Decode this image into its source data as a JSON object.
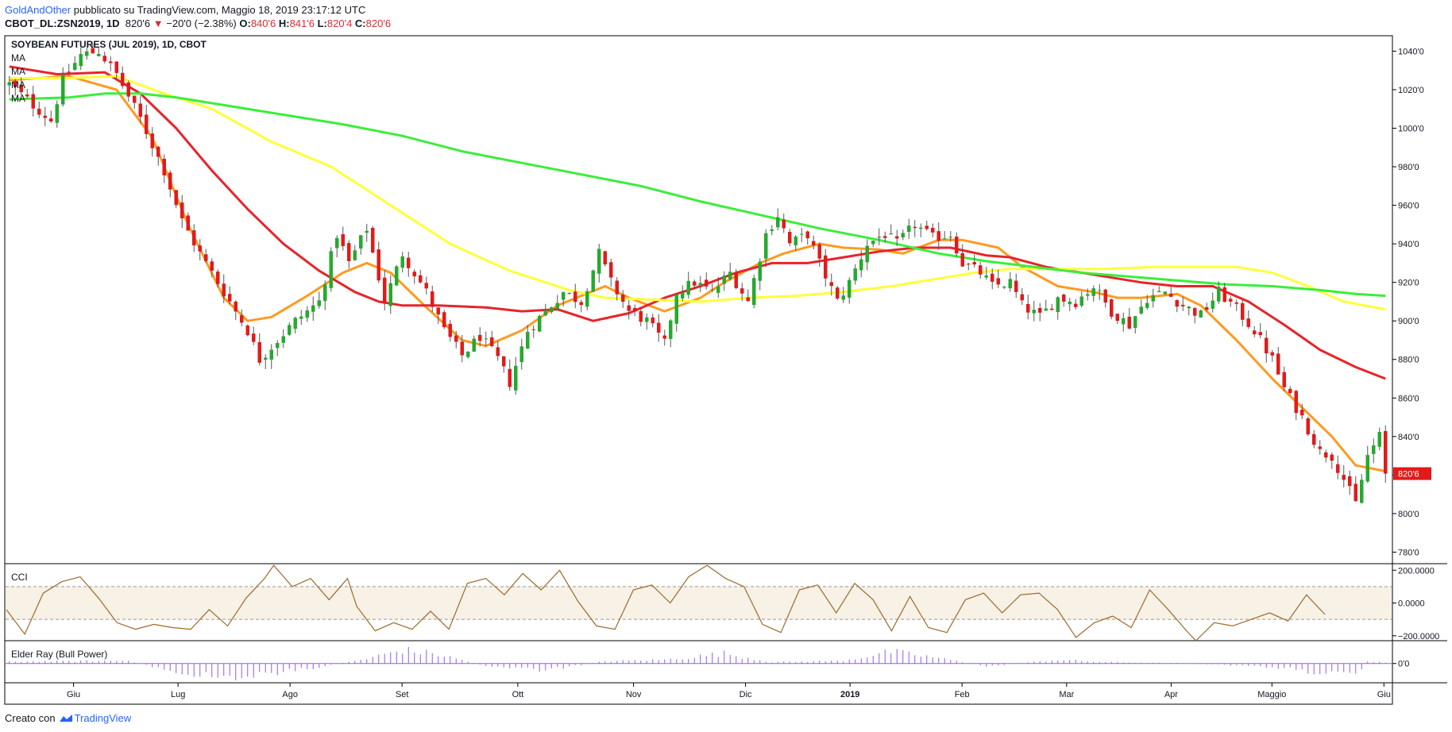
{
  "header": {
    "author": "GoldAndOther",
    "published_text": "pubblicato su TradingView.com, Maggio 18, 2019 23:17:12 UTC",
    "symbol": "CBOT_DL:ZSN2019, 1D",
    "last": "820'6",
    "change": "−20'0 (−2.38%)",
    "o_label": "O:",
    "o_val": "840'6",
    "h_label": "H:",
    "h_val": "841'6",
    "l_label": "L:",
    "l_val": "820'4",
    "c_label": "C:",
    "c_val": "820'6"
  },
  "footer": {
    "created": "Creato con",
    "brand": "TradingView"
  },
  "colors": {
    "up": "#26a92f",
    "down": "#e01b1b",
    "ma1": "#ff9a1f",
    "ma2": "#e8232a",
    "ma3": "#ffff3a",
    "ma4": "#3aee3a",
    "cci": "#9c6b2a",
    "cci_band": "#f7f1e6",
    "elder": "#8c5cf0"
  },
  "chart_data": {
    "type": "candlestick",
    "title": "SOYBEAN FUTURES (JUL 2019), 1D, CBOT",
    "ma_labels": [
      "MA",
      "MA",
      "MA",
      "MA"
    ],
    "x_ticks": [
      "Giu",
      "Lug",
      "Ago",
      "Set",
      "Ott",
      "Nov",
      "Dic",
      "2019",
      "Feb",
      "Mar",
      "Apr",
      "Maggio",
      "Giu"
    ],
    "y_ticks": [
      "1040'0",
      "1020'0",
      "1000'0",
      "980'0",
      "960'0",
      "940'0",
      "920'0",
      "900'0",
      "880'0",
      "860'0",
      "840'0",
      "820'0",
      "800'0",
      "780'0"
    ],
    "y_tick_values": [
      1040,
      1020,
      1000,
      980,
      960,
      940,
      920,
      900,
      880,
      860,
      840,
      820,
      800,
      780
    ],
    "ylim": [
      774,
      1048
    ],
    "last_price_label": "820'6",
    "last_price": 820.75,
    "price_path": [
      [
        0,
        1023
      ],
      [
        4,
        1012
      ],
      [
        7,
        1004
      ],
      [
        9,
        1025
      ],
      [
        12,
        1038
      ],
      [
        15,
        1040
      ],
      [
        18,
        1028
      ],
      [
        22,
        1005
      ],
      [
        26,
        978
      ],
      [
        29,
        952
      ],
      [
        32,
        935
      ],
      [
        36,
        915
      ],
      [
        40,
        895
      ],
      [
        42,
        880
      ],
      [
        45,
        890
      ],
      [
        48,
        900
      ],
      [
        52,
        910
      ],
      [
        55,
        945
      ],
      [
        57,
        930
      ],
      [
        60,
        948
      ],
      [
        63,
        910
      ],
      [
        66,
        935
      ],
      [
        68,
        925
      ],
      [
        70,
        915
      ],
      [
        73,
        895
      ],
      [
        76,
        882
      ],
      [
        79,
        892
      ],
      [
        82,
        880
      ],
      [
        84,
        868
      ],
      [
        87,
        895
      ],
      [
        90,
        905
      ],
      [
        93,
        915
      ],
      [
        96,
        910
      ],
      [
        99,
        935
      ],
      [
        101,
        920
      ],
      [
        104,
        905
      ],
      [
        107,
        900
      ],
      [
        110,
        888
      ],
      [
        112,
        915
      ],
      [
        115,
        920
      ],
      [
        118,
        915
      ],
      [
        121,
        925
      ],
      [
        124,
        910
      ],
      [
        127,
        945
      ],
      [
        129,
        955
      ],
      [
        131,
        940
      ],
      [
        134,
        945
      ],
      [
        136,
        930
      ],
      [
        139,
        910
      ],
      [
        141,
        920
      ],
      [
        144,
        940
      ],
      [
        147,
        945
      ],
      [
        149,
        940
      ],
      [
        152,
        950
      ],
      [
        155,
        943
      ],
      [
        158,
        945
      ],
      [
        160,
        930
      ],
      [
        163,
        925
      ],
      [
        165,
        918
      ],
      [
        168,
        920
      ],
      [
        170,
        908
      ],
      [
        173,
        902
      ],
      [
        176,
        912
      ],
      [
        179,
        910
      ],
      [
        182,
        918
      ],
      [
        185,
        905
      ],
      [
        188,
        898
      ],
      [
        191,
        912
      ],
      [
        194,
        915
      ],
      [
        197,
        908
      ],
      [
        200,
        903
      ],
      [
        203,
        915
      ],
      [
        206,
        906
      ],
      [
        209,
        895
      ],
      [
        212,
        880
      ],
      [
        214,
        865
      ],
      [
        217,
        850
      ],
      [
        220,
        832
      ],
      [
        222,
        830
      ],
      [
        224,
        818
      ],
      [
        226,
        805
      ],
      [
        228,
        830
      ],
      [
        230,
        840
      ],
      [
        231,
        821
      ]
    ],
    "moving_averages": [
      {
        "values": [
          [
            0,
            1025
          ],
          [
            10,
            1027
          ],
          [
            18,
            1020
          ],
          [
            24,
            995
          ],
          [
            30,
            950
          ],
          [
            36,
            912
          ],
          [
            40,
            900
          ],
          [
            44,
            902
          ],
          [
            50,
            913
          ],
          [
            56,
            925
          ],
          [
            60,
            930
          ],
          [
            64,
            925
          ],
          [
            70,
            907
          ],
          [
            76,
            890
          ],
          [
            80,
            887
          ],
          [
            86,
            895
          ],
          [
            92,
            908
          ],
          [
            96,
            913
          ],
          [
            100,
            918
          ],
          [
            104,
            912
          ],
          [
            110,
            905
          ],
          [
            116,
            912
          ],
          [
            120,
            920
          ],
          [
            126,
            930
          ],
          [
            130,
            935
          ],
          [
            136,
            940
          ],
          [
            140,
            938
          ],
          [
            146,
            937
          ],
          [
            150,
            935
          ],
          [
            156,
            942
          ],
          [
            160,
            942
          ],
          [
            166,
            938
          ],
          [
            170,
            928
          ],
          [
            176,
            918
          ],
          [
            182,
            915
          ],
          [
            186,
            912
          ],
          [
            190,
            912
          ],
          [
            196,
            914
          ],
          [
            200,
            908
          ],
          [
            206,
            890
          ],
          [
            212,
            870
          ],
          [
            218,
            852
          ],
          [
            222,
            840
          ],
          [
            226,
            825
          ],
          [
            231,
            822
          ]
        ]
      },
      {
        "values": [
          [
            0,
            1032
          ],
          [
            8,
            1028
          ],
          [
            16,
            1029
          ],
          [
            22,
            1018
          ],
          [
            28,
            1000
          ],
          [
            34,
            978
          ],
          [
            40,
            958
          ],
          [
            46,
            940
          ],
          [
            52,
            926
          ],
          [
            58,
            915
          ],
          [
            62,
            910
          ],
          [
            66,
            908
          ],
          [
            72,
            908
          ],
          [
            80,
            907
          ],
          [
            86,
            905
          ],
          [
            92,
            906
          ],
          [
            98,
            900
          ],
          [
            104,
            904
          ],
          [
            110,
            912
          ],
          [
            116,
            918
          ],
          [
            122,
            925
          ],
          [
            128,
            930
          ],
          [
            134,
            930
          ],
          [
            140,
            933
          ],
          [
            146,
            936
          ],
          [
            152,
            938
          ],
          [
            158,
            938
          ],
          [
            164,
            934
          ],
          [
            168,
            933
          ],
          [
            174,
            928
          ],
          [
            180,
            925
          ],
          [
            186,
            922
          ],
          [
            190,
            920
          ],
          [
            196,
            918
          ],
          [
            202,
            918
          ],
          [
            208,
            910
          ],
          [
            214,
            898
          ],
          [
            220,
            885
          ],
          [
            226,
            876
          ],
          [
            231,
            870
          ]
        ]
      },
      {
        "values": [
          [
            0,
            1026
          ],
          [
            10,
            1026
          ],
          [
            18,
            1027
          ],
          [
            26,
            1018
          ],
          [
            34,
            1010
          ],
          [
            44,
            993
          ],
          [
            54,
            980
          ],
          [
            64,
            960
          ],
          [
            74,
            940
          ],
          [
            84,
            926
          ],
          [
            94,
            916
          ],
          [
            100,
            912
          ],
          [
            108,
            911
          ],
          [
            116,
            910
          ],
          [
            124,
            912
          ],
          [
            132,
            913
          ],
          [
            140,
            915
          ],
          [
            148,
            918
          ],
          [
            156,
            922
          ],
          [
            162,
            925
          ],
          [
            168,
            927
          ],
          [
            176,
            927
          ],
          [
            184,
            927
          ],
          [
            192,
            928
          ],
          [
            200,
            928
          ],
          [
            206,
            928
          ],
          [
            212,
            925
          ],
          [
            218,
            918
          ],
          [
            224,
            910
          ],
          [
            231,
            906
          ]
        ]
      },
      {
        "values": [
          [
            0,
            1015
          ],
          [
            10,
            1016
          ],
          [
            16,
            1018
          ],
          [
            22,
            1018
          ],
          [
            28,
            1016
          ],
          [
            36,
            1012
          ],
          [
            46,
            1007
          ],
          [
            56,
            1002
          ],
          [
            66,
            996
          ],
          [
            76,
            988
          ],
          [
            86,
            982
          ],
          [
            96,
            976
          ],
          [
            106,
            970
          ],
          [
            116,
            962
          ],
          [
            126,
            955
          ],
          [
            136,
            948
          ],
          [
            146,
            942
          ],
          [
            156,
            935
          ],
          [
            164,
            931
          ],
          [
            172,
            928
          ],
          [
            180,
            925
          ],
          [
            188,
            923
          ],
          [
            196,
            921
          ],
          [
            204,
            919
          ],
          [
            212,
            918
          ],
          [
            220,
            916
          ],
          [
            226,
            914
          ],
          [
            231,
            913
          ]
        ]
      }
    ],
    "cci": {
      "label": "CCI",
      "y_ticks": [
        "200.0000",
        "0.0000",
        "−200.0000"
      ],
      "y_tick_values": [
        200,
        0,
        -200
      ],
      "bands": [
        100,
        -100
      ],
      "ylim": [
        -230,
        240
      ],
      "path": [
        [
          0,
          -40
        ],
        [
          4,
          -190
        ],
        [
          8,
          60
        ],
        [
          12,
          130
        ],
        [
          16,
          160
        ],
        [
          20,
          30
        ],
        [
          24,
          -120
        ],
        [
          28,
          -160
        ],
        [
          32,
          -130
        ],
        [
          36,
          -150
        ],
        [
          40,
          -160
        ],
        [
          44,
          -40
        ],
        [
          48,
          -140
        ],
        [
          52,
          30
        ],
        [
          56,
          150
        ],
        [
          58,
          230
        ],
        [
          62,
          100
        ],
        [
          66,
          150
        ],
        [
          70,
          20
        ],
        [
          74,
          150
        ],
        [
          76,
          -20
        ],
        [
          80,
          -170
        ],
        [
          84,
          -120
        ],
        [
          88,
          -160
        ],
        [
          92,
          -50
        ],
        [
          96,
          -160
        ],
        [
          100,
          120
        ],
        [
          104,
          150
        ],
        [
          108,
          50
        ],
        [
          112,
          180
        ],
        [
          116,
          80
        ],
        [
          120,
          200
        ],
        [
          124,
          10
        ],
        [
          128,
          -140
        ],
        [
          132,
          -160
        ],
        [
          136,
          80
        ],
        [
          140,
          110
        ],
        [
          144,
          0
        ],
        [
          148,
          160
        ],
        [
          152,
          230
        ],
        [
          156,
          150
        ],
        [
          160,
          100
        ],
        [
          164,
          -130
        ],
        [
          168,
          -180
        ],
        [
          172,
          80
        ],
        [
          176,
          110
        ],
        [
          180,
          -60
        ],
        [
          184,
          120
        ],
        [
          188,
          20
        ],
        [
          192,
          -170
        ],
        [
          196,
          40
        ],
        [
          200,
          -150
        ],
        [
          204,
          -180
        ],
        [
          208,
          20
        ],
        [
          212,
          60
        ],
        [
          216,
          -60
        ],
        [
          220,
          50
        ],
        [
          224,
          60
        ],
        [
          228,
          -40
        ],
        [
          232,
          -210
        ],
        [
          236,
          -120
        ],
        [
          240,
          -80
        ],
        [
          244,
          -150
        ],
        [
          248,
          80
        ],
        [
          252,
          -40
        ],
        [
          256,
          -170
        ],
        [
          258,
          -230
        ],
        [
          262,
          -120
        ],
        [
          266,
          -140
        ],
        [
          270,
          -100
        ],
        [
          274,
          -60
        ],
        [
          278,
          -110
        ],
        [
          282,
          50
        ],
        [
          286,
          -70
        ]
      ]
    },
    "elder": {
      "label": "Elder Ray (Bull Power)",
      "y_tick": "0'0",
      "ylim": [
        -38,
        45
      ]
    }
  }
}
